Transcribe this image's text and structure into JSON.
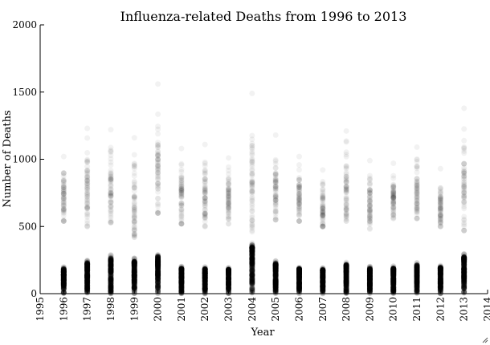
{
  "chart_data": {
    "type": "scatter",
    "title": "Influenza-related Deaths from 1996 to 2013",
    "xlabel": "Year",
    "ylabel": "Number of Deaths",
    "xlim": [
      1995,
      2014
    ],
    "ylim": [
      0,
      2000
    ],
    "x_ticks": [
      "1995",
      "1996",
      "1997",
      "1998",
      "1999",
      "2000",
      "2001",
      "2002",
      "2003",
      "2004",
      "2005",
      "2006",
      "2007",
      "2008",
      "2009",
      "2010",
      "2011",
      "2012",
      "2013",
      "2014"
    ],
    "y_ticks": [
      "0",
      "500",
      "1000",
      "1500",
      "2000"
    ],
    "marker_color": "#000000",
    "marker_alpha": 0.05,
    "series": [
      {
        "year": 1996,
        "low_max": 200,
        "high_min": 540,
        "high_max": 1020
      },
      {
        "year": 1997,
        "low_max": 250,
        "high_min": 500,
        "high_max": 1230
      },
      {
        "year": 1998,
        "low_max": 290,
        "high_min": 530,
        "high_max": 1220
      },
      {
        "year": 1999,
        "low_max": 265,
        "high_min": 420,
        "high_max": 1160
      },
      {
        "year": 2000,
        "low_max": 300,
        "high_min": 600,
        "high_max": 1560
      },
      {
        "year": 2001,
        "low_max": 205,
        "high_min": 520,
        "high_max": 1080
      },
      {
        "year": 2002,
        "low_max": 200,
        "high_min": 500,
        "high_max": 1110
      },
      {
        "year": 2003,
        "low_max": 195,
        "high_min": 520,
        "high_max": 1010
      },
      {
        "year": 2004,
        "low_max": 380,
        "high_min": 460,
        "high_max": 1490
      },
      {
        "year": 2005,
        "low_max": 245,
        "high_min": 550,
        "high_max": 1180
      },
      {
        "year": 2006,
        "low_max": 200,
        "high_min": 540,
        "high_max": 1020
      },
      {
        "year": 2007,
        "low_max": 195,
        "high_min": 500,
        "high_max": 920
      },
      {
        "year": 2008,
        "low_max": 235,
        "high_min": 540,
        "high_max": 1210
      },
      {
        "year": 2009,
        "low_max": 205,
        "high_min": 480,
        "high_max": 990
      },
      {
        "year": 2010,
        "low_max": 205,
        "high_min": 560,
        "high_max": 970
      },
      {
        "year": 2011,
        "low_max": 230,
        "high_min": 560,
        "high_max": 1090
      },
      {
        "year": 2012,
        "low_max": 210,
        "high_min": 500,
        "high_max": 930
      },
      {
        "year": 2013,
        "low_max": 300,
        "high_min": 470,
        "high_max": 1380
      }
    ]
  }
}
